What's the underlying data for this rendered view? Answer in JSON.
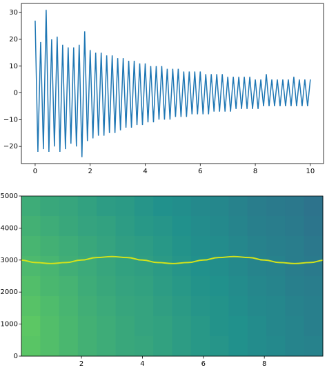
{
  "chart_data": [
    {
      "type": "line",
      "x": [
        0,
        0.1,
        0.2,
        0.3,
        0.4,
        0.5,
        0.6,
        0.7,
        0.8,
        0.9,
        1,
        1.1,
        1.2,
        1.3,
        1.4,
        1.5,
        1.6,
        1.7,
        1.8,
        1.9,
        2,
        2.1,
        2.2,
        2.3,
        2.4,
        2.5,
        2.6,
        2.7,
        2.8,
        2.9,
        3,
        3.1,
        3.2,
        3.3,
        3.4,
        3.5,
        3.6,
        3.7,
        3.8,
        3.9,
        4,
        4.1,
        4.2,
        4.3,
        4.4,
        4.5,
        4.6,
        4.7,
        4.8,
        4.9,
        5,
        5.1,
        5.2,
        5.3,
        5.4,
        5.5,
        5.6,
        5.7,
        5.8,
        5.9,
        6,
        6.1,
        6.2,
        6.3,
        6.4,
        6.5,
        6.6,
        6.7,
        6.8,
        6.9,
        7,
        7.1,
        7.2,
        7.3,
        7.4,
        7.5,
        7.6,
        7.7,
        7.8,
        7.9,
        8,
        8.1,
        8.2,
        8.3,
        8.4,
        8.5,
        8.6,
        8.7,
        8.8,
        8.9,
        9,
        9.1,
        9.2,
        9.3,
        9.4,
        9.5,
        9.6,
        9.7,
        9.8,
        9.9,
        10
      ],
      "series": [
        {
          "color": "#1f77b4",
          "values": [
            27,
            -22,
            19,
            -21,
            31,
            -22,
            20,
            -20,
            21,
            -22,
            18,
            -21,
            17,
            -19,
            17,
            -20,
            18,
            -24,
            23,
            -18,
            16,
            -17,
            15,
            -16,
            15,
            -16,
            14,
            -15,
            14,
            -15,
            13,
            -14,
            13,
            -13,
            12,
            -13,
            12,
            -12,
            11,
            -12,
            11,
            -11,
            10,
            -11,
            10,
            -10,
            10,
            -10,
            9,
            -10,
            9,
            -9,
            9,
            -9,
            8,
            -9,
            8,
            -8,
            8,
            -8,
            8,
            -8,
            7,
            -8,
            7,
            -7,
            7,
            -7,
            7,
            -7,
            6,
            -7,
            6,
            -6,
            6,
            -6,
            6,
            -6,
            6,
            -6,
            5,
            -6,
            5,
            -5,
            7,
            -5,
            5,
            -5,
            5,
            -5,
            5,
            -5,
            5,
            -5,
            6,
            -5,
            5,
            -5,
            5,
            -5,
            5
          ]
        }
      ],
      "xlim": [
        -0.5,
        10.48
      ],
      "ylim": [
        -26.4,
        33.4
      ],
      "xticks": [
        0,
        2,
        4,
        6,
        8,
        10
      ],
      "yticks": [
        {
          "value": -20,
          "label": "−20"
        },
        {
          "value": -10,
          "label": "−10"
        },
        0,
        10,
        20,
        30
      ]
    },
    {
      "type": "spectrogram",
      "cmap": "viridis",
      "z": [
        [
          0.62,
          0.6,
          0.59,
          0.57,
          0.55,
          0.54,
          0.52,
          0.5,
          0.49,
          0.47,
          0.46,
          0.44,
          0.42,
          0.41,
          0.4,
          0.38
        ],
        [
          0.64,
          0.62,
          0.6,
          0.58,
          0.57,
          0.55,
          0.53,
          0.52,
          0.5,
          0.48,
          0.47,
          0.45,
          0.43,
          0.42,
          0.41,
          0.39
        ],
        [
          0.66,
          0.64,
          0.62,
          0.6,
          0.58,
          0.56,
          0.55,
          0.53,
          0.51,
          0.49,
          0.48,
          0.46,
          0.44,
          0.43,
          0.42,
          0.4
        ],
        [
          0.68,
          0.66,
          0.63,
          0.61,
          0.59,
          0.57,
          0.56,
          0.54,
          0.52,
          0.5,
          0.49,
          0.47,
          0.45,
          0.44,
          0.42,
          0.41
        ],
        [
          0.7,
          0.67,
          0.65,
          0.62,
          0.6,
          0.58,
          0.57,
          0.55,
          0.53,
          0.51,
          0.5,
          0.48,
          0.46,
          0.45,
          0.43,
          0.42
        ],
        [
          0.72,
          0.69,
          0.66,
          0.63,
          0.61,
          0.59,
          0.58,
          0.56,
          0.54,
          0.52,
          0.51,
          0.49,
          0.47,
          0.46,
          0.44,
          0.43
        ],
        [
          0.74,
          0.7,
          0.67,
          0.64,
          0.62,
          0.6,
          0.58,
          0.57,
          0.55,
          0.53,
          0.51,
          0.5,
          0.48,
          0.46,
          0.45,
          0.43
        ],
        [
          0.73,
          0.7,
          0.67,
          0.64,
          0.62,
          0.6,
          0.59,
          0.57,
          0.55,
          0.53,
          0.52,
          0.5,
          0.48,
          0.47,
          0.45,
          0.44
        ]
      ],
      "x": [
        0,
        0.5,
        1,
        1.5,
        2,
        2.5,
        3,
        3.5,
        4,
        4.5,
        5,
        5.5,
        6,
        6.5,
        7,
        7.5,
        8,
        8.5,
        9,
        9.5,
        10
      ],
      "series": [
        {
          "color": "#d2e21b",
          "values": [
            3000,
            2922,
            2890,
            2922,
            3000,
            3078,
            3110,
            3078,
            3000,
            2922,
            2890,
            2922,
            3000,
            3078,
            3110,
            3078,
            3000,
            2922,
            2890,
            2922,
            3000
          ]
        }
      ],
      "xlim": [
        0.03,
        9.92
      ],
      "ylim": [
        0,
        5000
      ],
      "xticks": [
        2,
        4,
        6,
        8
      ],
      "yticks": [
        0,
        1000,
        2000,
        3000,
        4000,
        5000
      ]
    }
  ]
}
